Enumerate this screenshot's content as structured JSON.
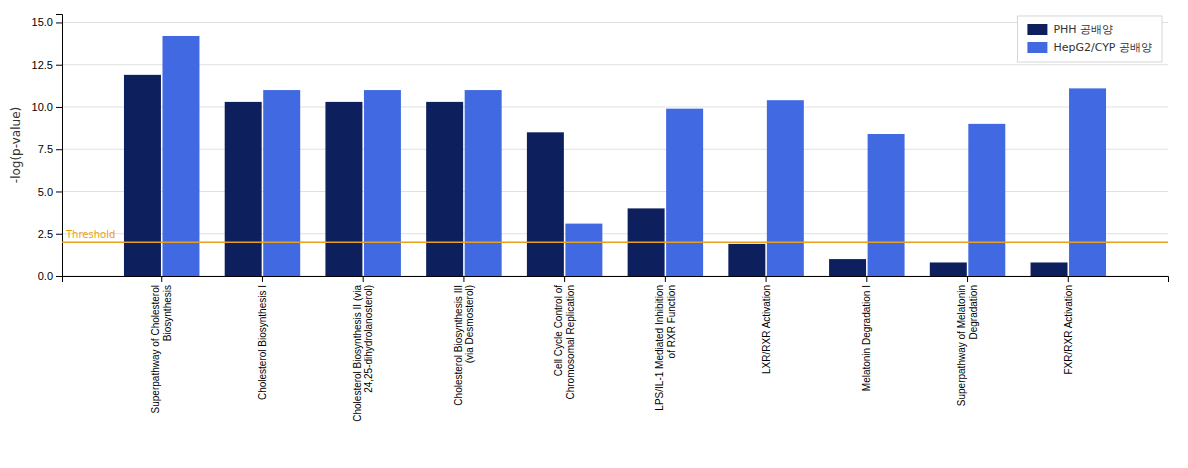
{
  "chart_data": {
    "type": "bar",
    "ylabel": "-log(p-value)",
    "categories": [
      "Superpathway of Cholesterol\nBiosynthesis",
      "Cholesterol Biosynthesis I",
      "Cholesterol Biosynthesis II (via\n24,25-dihydrolanosterol)",
      "Cholesterol Biosynthesis III\n(via Desmosterol)",
      "Cell Cycle Control of\nChromosomal Replication",
      "LPS/IL-1 Mediated Inhibition\nof RXR Function",
      "LXR/RXR Activation",
      "Melatonin Degradation I",
      "Superpathway of Melatonin\nDegradation",
      "FXR/RXR Activation"
    ],
    "series": [
      {
        "name": "PHH 공배양",
        "color": "#0d1f5c",
        "values": [
          11.9,
          10.3,
          10.3,
          10.3,
          8.5,
          4.0,
          1.9,
          1.0,
          0.8,
          0.8
        ]
      },
      {
        "name": "HepG2/CYP 공배양",
        "color": "#4169e1",
        "values": [
          14.2,
          11.0,
          11.0,
          11.0,
          3.1,
          9.9,
          10.4,
          8.4,
          9.0,
          11.1
        ]
      }
    ],
    "annotations": [
      {
        "text": "Threshold",
        "y": 2.0,
        "color": "#e8a020"
      }
    ],
    "ylim": [
      0,
      15.5
    ],
    "yticks": [
      {
        "value": 0.0,
        "label": "0.0"
      },
      2.5,
      {
        "value": 5.0,
        "label": "5.0"
      },
      7.5,
      {
        "value": 10.0,
        "label": "10.0"
      },
      12.5,
      {
        "value": 15.0,
        "label": "15.0"
      }
    ],
    "grid": true,
    "legend": "upper right"
  }
}
